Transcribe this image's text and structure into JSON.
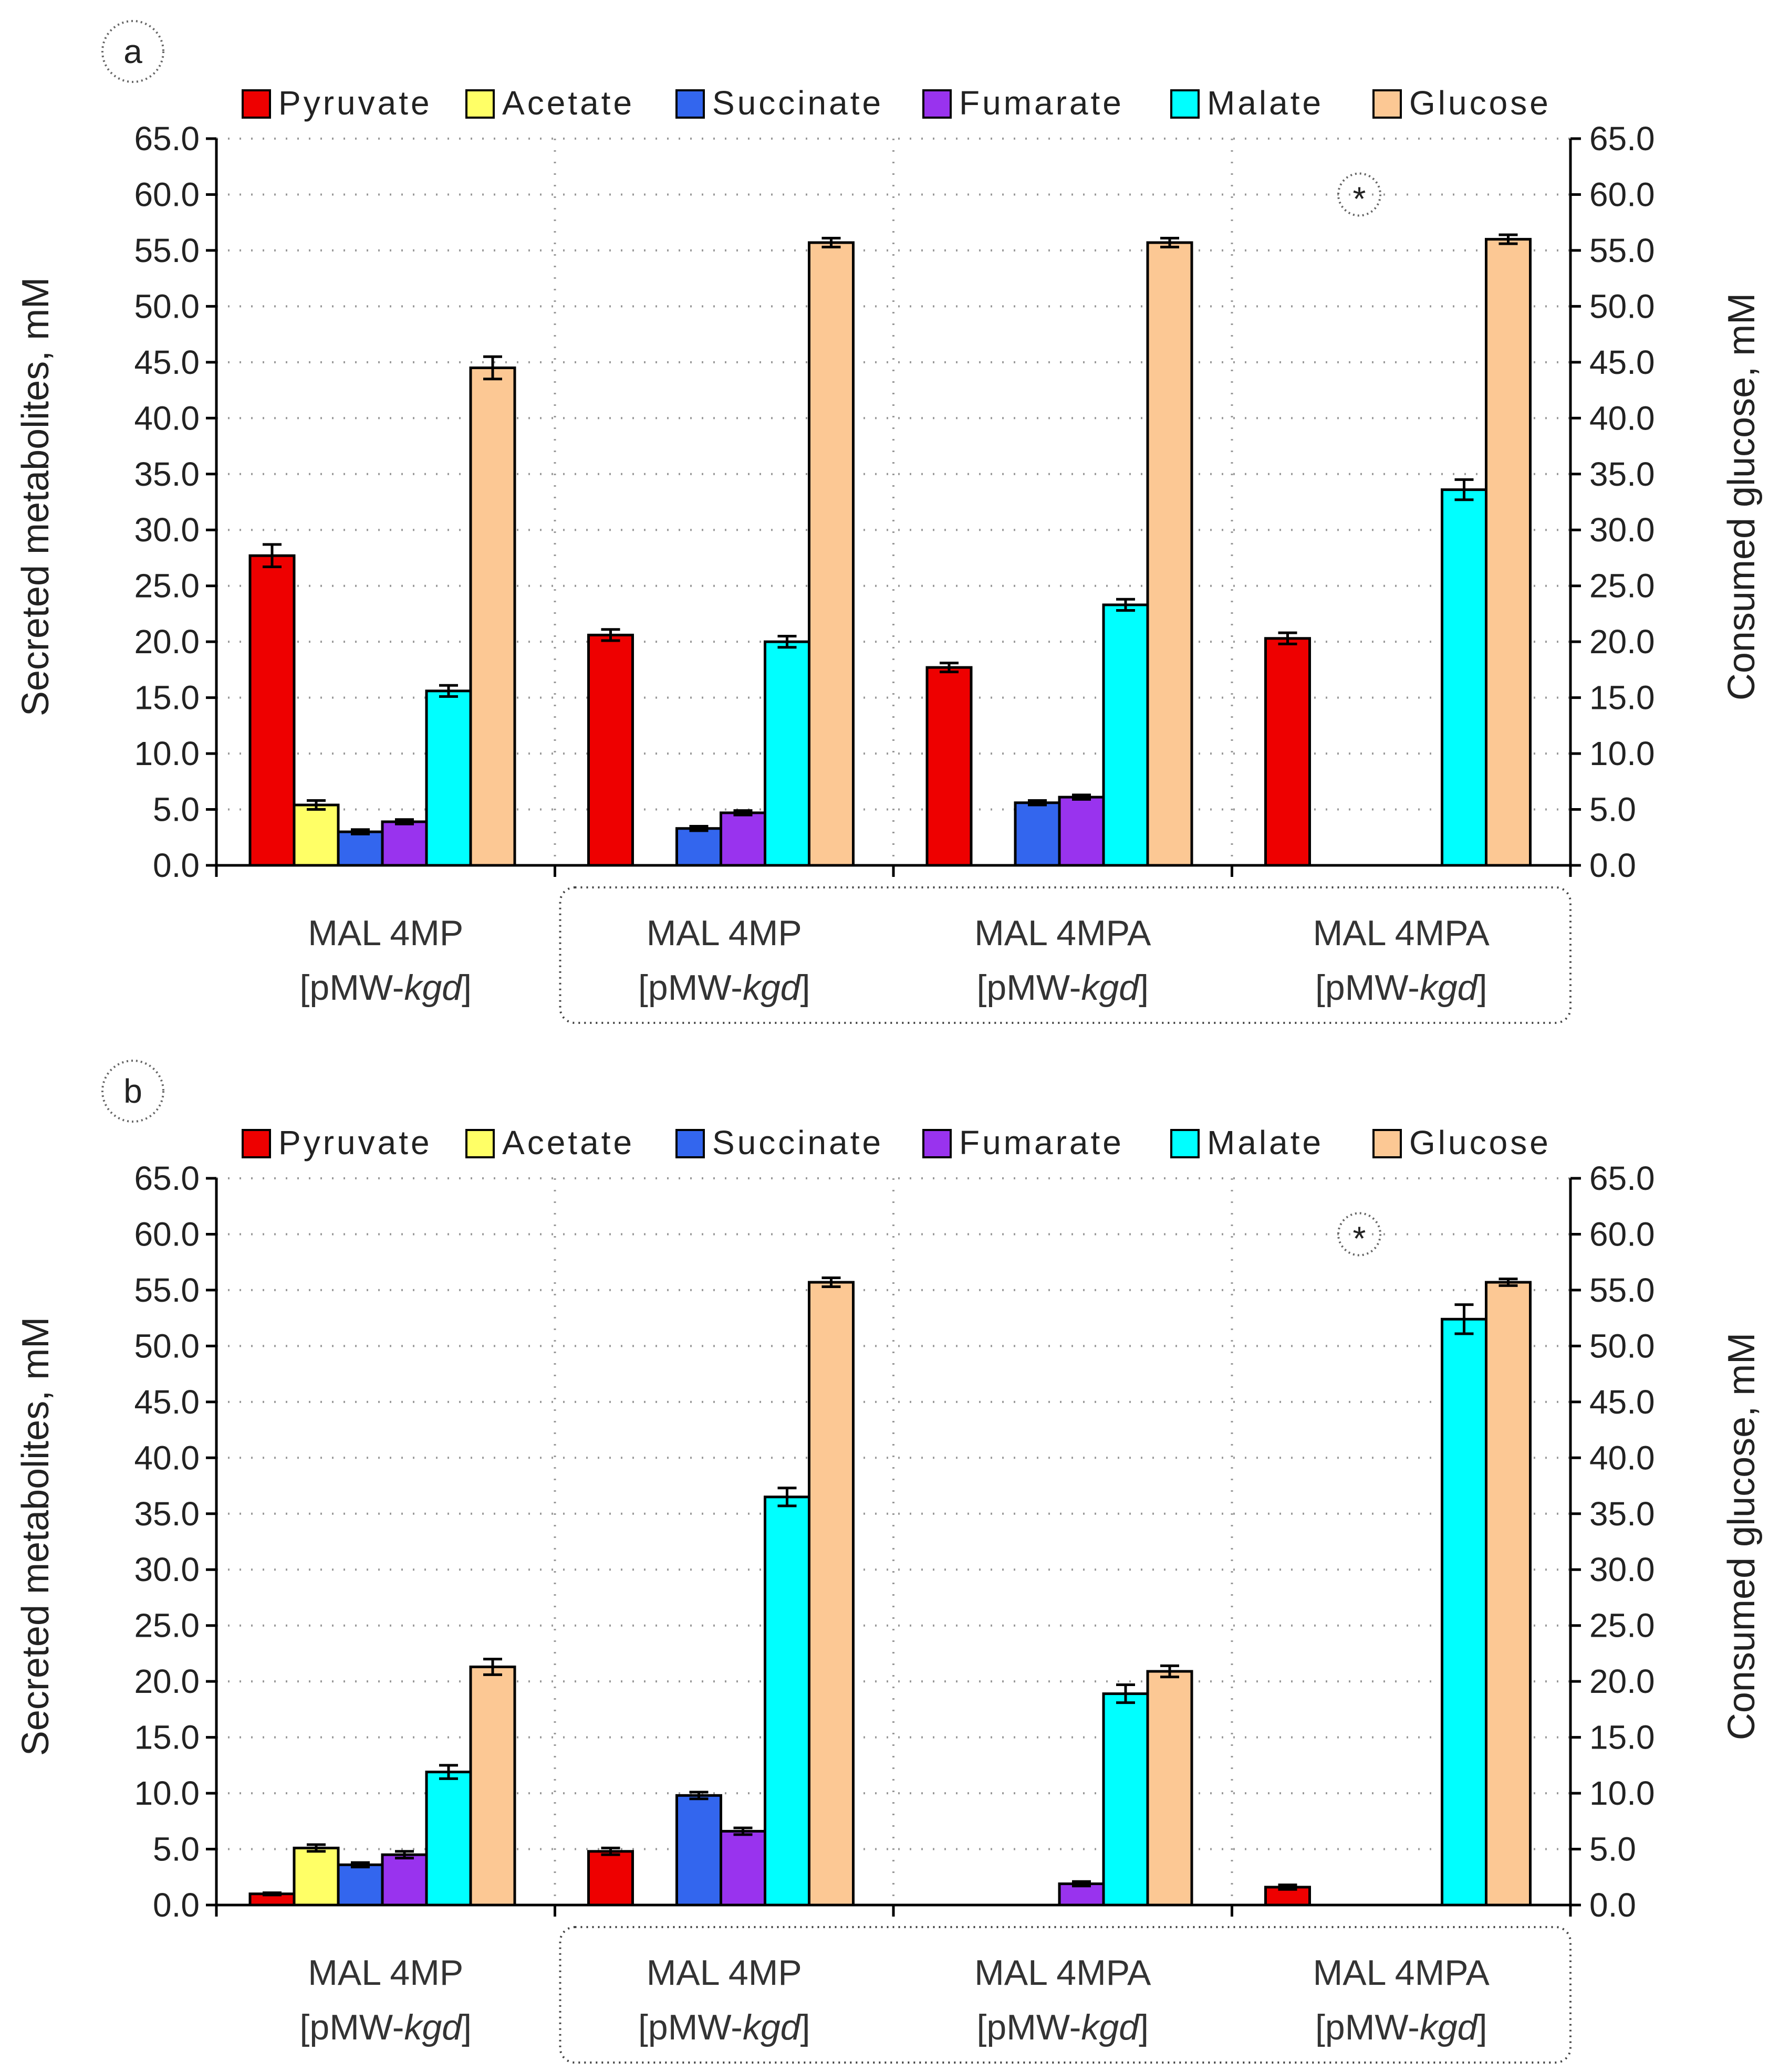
{
  "colors": {
    "Pyruvate": "#ee0000",
    "Acetate": "#ffff66",
    "Succinate": "#3366ee",
    "Fumarate": "#9933ee",
    "Malate": "#00ffff",
    "Glucose": "#fcc894"
  },
  "legend": [
    "Pyruvate",
    "Acetate",
    "Succinate",
    "Fumarate",
    "Malate",
    "Glucose"
  ],
  "chart_data": [
    {
      "type": "bar",
      "panel": "a",
      "title": "",
      "ylabel": "Secreted metabolites, mM",
      "y2label": "Consumed glucose, mM",
      "ylim": [
        0,
        65
      ],
      "yticks": [
        "0.0",
        "5.0",
        "10.0",
        "15.0",
        "20.0",
        "25.0",
        "30.0",
        "35.0",
        "40.0",
        "45.0",
        "50.0",
        "55.0",
        "60.0",
        "65.0"
      ],
      "categories": [
        {
          "line1": "MAL 4MP",
          "line2_prefix": "[pMW-",
          "line2_italic": "kgd",
          "line2_suffix": "]"
        },
        {
          "line1": "MAL 4MP",
          "line2_prefix": "[pMW-",
          "line2_italic": "kgd",
          "line2_suffix": "]"
        },
        {
          "line1": "MAL 4MPA",
          "line2_prefix": "[pMW-",
          "line2_italic": "kgd",
          "line2_suffix": "]"
        },
        {
          "line1": "MAL 4MPA",
          "line2_prefix": "[pMW-",
          "line2_italic": "kgd",
          "line2_suffix": "]"
        }
      ],
      "series": [
        {
          "name": "Pyruvate",
          "values": [
            27.7,
            20.6,
            17.7,
            20.3
          ],
          "errors": [
            1.0,
            0.5,
            0.4,
            0.5
          ]
        },
        {
          "name": "Acetate",
          "values": [
            5.4,
            0,
            0,
            0
          ],
          "errors": [
            0.4,
            0,
            0,
            0
          ]
        },
        {
          "name": "Succinate",
          "values": [
            3.0,
            3.3,
            5.6,
            0
          ],
          "errors": [
            0.2,
            0.2,
            0.2,
            0
          ]
        },
        {
          "name": "Fumarate",
          "values": [
            3.9,
            4.7,
            6.1,
            0
          ],
          "errors": [
            0.2,
            0.2,
            0.2,
            0
          ]
        },
        {
          "name": "Malate",
          "values": [
            15.6,
            20.0,
            23.3,
            33.6
          ],
          "errors": [
            0.5,
            0.5,
            0.5,
            0.9
          ]
        },
        {
          "name": "Glucose",
          "values": [
            44.5,
            55.7,
            55.7,
            56.0
          ],
          "errors": [
            1.0,
            0.4,
            0.4,
            0.4
          ]
        }
      ],
      "annotation": "*"
    },
    {
      "type": "bar",
      "panel": "b",
      "title": "",
      "ylabel": "Secreted metabolites, mM",
      "y2label": "Consumed glucose, mM",
      "ylim": [
        0,
        65
      ],
      "yticks": [
        "0.0",
        "5.0",
        "10.0",
        "15.0",
        "20.0",
        "25.0",
        "30.0",
        "35.0",
        "40.0",
        "45.0",
        "50.0",
        "55.0",
        "60.0",
        "65.0"
      ],
      "categories": [
        {
          "line1": "MAL 4MP",
          "line2_prefix": "[pMW-",
          "line2_italic": "kgd",
          "line2_suffix": "]"
        },
        {
          "line1": "MAL 4MP",
          "line2_prefix": "[pMW-",
          "line2_italic": "kgd",
          "line2_suffix": "]"
        },
        {
          "line1": "MAL 4MPA",
          "line2_prefix": "[pMW-",
          "line2_italic": "kgd",
          "line2_suffix": "]"
        },
        {
          "line1": "MAL 4MPA",
          "line2_prefix": "[pMW-",
          "line2_italic": "kgd",
          "line2_suffix": "]"
        }
      ],
      "series": [
        {
          "name": "Pyruvate",
          "values": [
            1.0,
            4.8,
            0,
            1.6
          ],
          "errors": [
            0.1,
            0.3,
            0,
            0.2
          ]
        },
        {
          "name": "Acetate",
          "values": [
            5.1,
            0,
            0,
            0
          ],
          "errors": [
            0.3,
            0,
            0,
            0
          ]
        },
        {
          "name": "Succinate",
          "values": [
            3.6,
            9.8,
            0,
            0
          ],
          "errors": [
            0.2,
            0.3,
            0,
            0
          ]
        },
        {
          "name": "Fumarate",
          "values": [
            4.5,
            6.6,
            1.9,
            0
          ],
          "errors": [
            0.3,
            0.3,
            0.2,
            0
          ]
        },
        {
          "name": "Malate",
          "values": [
            11.9,
            36.5,
            18.9,
            52.4
          ],
          "errors": [
            0.6,
            0.8,
            0.8,
            1.3
          ]
        },
        {
          "name": "Glucose",
          "values": [
            21.3,
            55.7,
            20.9,
            55.7
          ],
          "errors": [
            0.7,
            0.4,
            0.5,
            0.3
          ]
        }
      ],
      "annotation": "*"
    }
  ]
}
